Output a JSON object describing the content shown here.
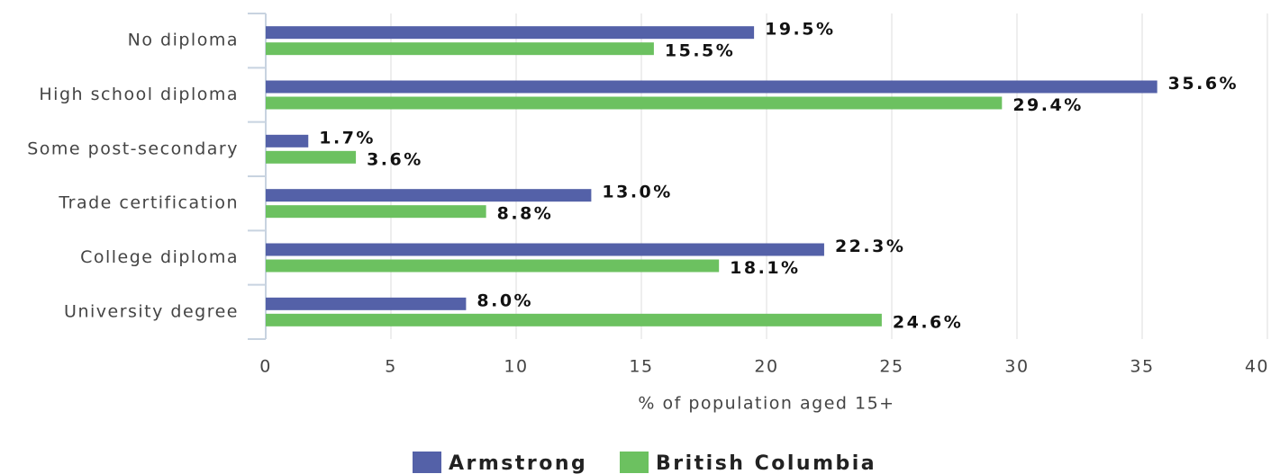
{
  "chart_data": {
    "type": "bar",
    "orientation": "horizontal",
    "categories": [
      "No diploma",
      "High school diploma",
      "Some post-secondary",
      "Trade certification",
      "College diploma",
      "University degree"
    ],
    "series": [
      {
        "name": "Armstrong",
        "color": "#5461a8",
        "values": [
          19.5,
          35.6,
          1.7,
          13.0,
          22.3,
          8.0
        ],
        "value_labels": [
          "19.5%",
          "35.6%",
          "1.7%",
          "13.0%",
          "22.3%",
          "8.0%"
        ]
      },
      {
        "name": "British Columbia",
        "color": "#6cc160",
        "values": [
          15.5,
          29.4,
          3.6,
          8.8,
          18.1,
          24.6
        ],
        "value_labels": [
          "15.5%",
          "29.4%",
          "3.6%",
          "8.8%",
          "18.1%",
          "24.6%"
        ]
      }
    ],
    "xlabel": "% of population aged 15+",
    "xlim": [
      0,
      40
    ],
    "xticks": [
      0,
      5,
      10,
      15,
      20,
      25,
      30,
      35,
      40
    ],
    "grid": true,
    "legend": "bottom"
  }
}
